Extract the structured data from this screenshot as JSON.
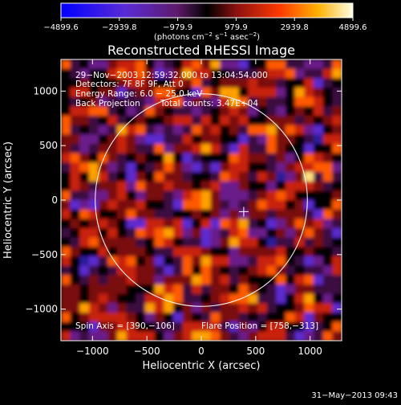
{
  "chart_data": {
    "type": "heatmap",
    "title": "Reconstructed RHESSI Image",
    "xlabel": "Heliocentric X (arcsec)",
    "ylabel": "Heliocentric Y (arcsec)",
    "xlim": [
      -1290,
      1290
    ],
    "ylim": [
      -1290,
      1290
    ],
    "x_ticks": [
      -1000,
      -500,
      0,
      500,
      1000
    ],
    "y_ticks": [
      -1000,
      -500,
      0,
      500,
      1000
    ],
    "x_tick_labels": [
      "−1000",
      "−500",
      "0",
      "500",
      "1000"
    ],
    "y_tick_labels": [
      "−1000",
      "−500",
      "0",
      "500",
      "1000"
    ],
    "colorbar": {
      "min": -4899.6,
      "max": 4899.6,
      "tick_labels": [
        "−4899.6",
        "−2939.8",
        "−979.9",
        "979.9",
        "2939.8",
        "4899.6"
      ],
      "tick_values": [
        -4899.6,
        -2939.8,
        -979.9,
        979.9,
        2939.8,
        4899.6
      ],
      "unit_label": "(photons cm",
      "unit_exp1": "−2",
      "unit_mid": " s",
      "unit_exp2": "−1",
      "unit_end": " asec",
      "unit_exp3": "−2",
      "unit_close": ")"
    },
    "annotations": {
      "time_range": "29−Nov−2003 12:59:32.000 to 13:04:54.000",
      "detectors": "Detectors: 7F 8F 9F, Att 0",
      "energy_range": "Energy Range: 6.0 − 25.0 keV",
      "method": "Back Projection",
      "total_counts": "Total counts: 3.47E+04",
      "spin_axis": "Spin Axis = [390,−106]",
      "flare_position": "Flare Position = [758,−313]"
    },
    "solar_disk": {
      "center": [
        0,
        0
      ],
      "radius": 975
    },
    "marker": {
      "x": 390,
      "y": -106,
      "symbol": "+"
    },
    "grid": false
  },
  "footer": {
    "timestamp": "31−May−2013 09:43"
  },
  "colors": {
    "background": "#000000",
    "text": "#ffffff"
  }
}
